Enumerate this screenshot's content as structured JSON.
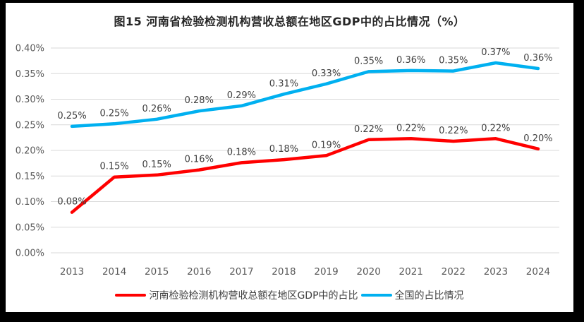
{
  "frame": {
    "border_color": "#000000",
    "page_color": "#FFFFFF"
  },
  "chart_data": {
    "type": "line",
    "title": "图15  河南省检验检测机构营收总额在地区GDP中的占比情况（%）",
    "categories": [
      "2013",
      "2014",
      "2015",
      "2016",
      "2017",
      "2018",
      "2019",
      "2020",
      "2021",
      "2022",
      "2023",
      "2024"
    ],
    "series": [
      {
        "name": "河南检验检测机构营收总额在地区GDP中的占比",
        "color": "#FF0000",
        "values": [
          0.079,
          0.148,
          0.152,
          0.162,
          0.176,
          0.182,
          0.19,
          0.221,
          0.223,
          0.218,
          0.223,
          0.203
        ],
        "labels": [
          "0.08%",
          "0.15%",
          "0.15%",
          "0.16%",
          "0.18%",
          "0.18%",
          "0.19%",
          "0.22%",
          "0.22%",
          "0.22%",
          "0.22%",
          "0.20%"
        ]
      },
      {
        "name": "全国的占比情况",
        "color": "#00B0F0",
        "values": [
          0.247,
          0.252,
          0.261,
          0.277,
          0.287,
          0.31,
          0.33,
          0.354,
          0.356,
          0.355,
          0.371,
          0.36
        ],
        "labels": [
          "0.25%",
          "0.25%",
          "0.26%",
          "0.28%",
          "0.29%",
          "0.31%",
          "0.33%",
          "0.35%",
          "0.36%",
          "0.35%",
          "0.37%",
          "0.36%"
        ]
      }
    ],
    "ylim": [
      0,
      0.4
    ],
    "yticks": {
      "values": [
        0.0,
        0.05,
        0.1,
        0.15,
        0.2,
        0.25,
        0.3,
        0.35,
        0.4
      ],
      "labels": [
        "0.00%",
        "0.05%",
        "0.10%",
        "0.15%",
        "0.20%",
        "0.25%",
        "0.30%",
        "0.35%",
        "0.40%"
      ]
    },
    "grid": true,
    "legend_position": "bottom",
    "xlabel": "",
    "ylabel": ""
  }
}
